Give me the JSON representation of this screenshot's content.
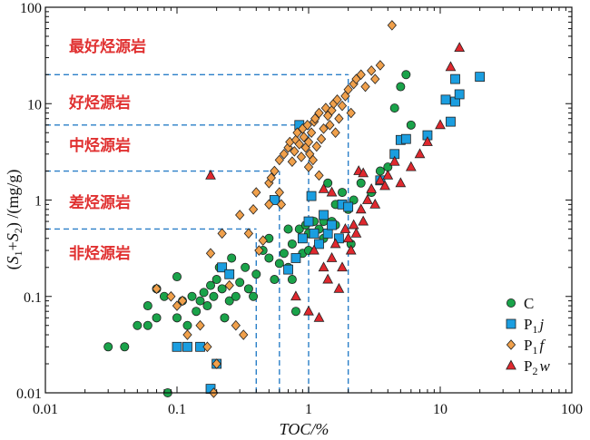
{
  "chart_data": {
    "type": "scatter",
    "x_scale": "log",
    "y_scale": "log",
    "xlim": [
      0.01,
      100
    ],
    "ylim": [
      0.01,
      100
    ],
    "xlabel": "TOC/%",
    "ylabel": "(S1+S2) /(mg/g)",
    "x_ticks": [
      "0.01",
      "0.1",
      "1",
      "10",
      "100"
    ],
    "y_ticks": [
      "0.01",
      "0.1",
      "1",
      "10",
      "100"
    ],
    "grid": false,
    "legend_position": "bottom-right",
    "class_labels": [
      "最好烃源岩",
      "好烃源岩",
      "中烃源岩",
      "差烃源岩",
      "非烃源岩"
    ],
    "thresholds": {
      "y": [
        0.5,
        2,
        6,
        20
      ],
      "x": [
        0.4,
        0.6,
        1.0,
        2.0
      ]
    },
    "colors": {
      "C": "#1aa34a",
      "P1j": "#1b9ee0",
      "P1f": "#f0a04b",
      "P2w": "#e0282e",
      "guide": "#2a7fc8",
      "label": "#e03030"
    },
    "series": [
      {
        "name": "C",
        "marker": "circle",
        "points": [
          [
            0.03,
            0.03
          ],
          [
            0.04,
            0.03
          ],
          [
            0.05,
            0.05
          ],
          [
            0.06,
            0.05
          ],
          [
            0.06,
            0.08
          ],
          [
            0.07,
            0.06
          ],
          [
            0.07,
            0.12
          ],
          [
            0.08,
            0.1
          ],
          [
            0.085,
            0.01
          ],
          [
            0.1,
            0.06
          ],
          [
            0.1,
            0.16
          ],
          [
            0.11,
            0.09
          ],
          [
            0.12,
            0.05
          ],
          [
            0.13,
            0.1
          ],
          [
            0.14,
            0.07
          ],
          [
            0.15,
            0.09
          ],
          [
            0.16,
            0.11
          ],
          [
            0.17,
            0.08
          ],
          [
            0.18,
            0.13
          ],
          [
            0.19,
            0.1
          ],
          [
            0.2,
            0.15
          ],
          [
            0.21,
            0.2
          ],
          [
            0.22,
            0.12
          ],
          [
            0.23,
            0.06
          ],
          [
            0.25,
            0.09
          ],
          [
            0.26,
            0.25
          ],
          [
            0.28,
            0.1
          ],
          [
            0.3,
            0.14
          ],
          [
            0.33,
            0.2
          ],
          [
            0.35,
            0.12
          ],
          [
            0.38,
            0.1
          ],
          [
            0.4,
            0.17
          ],
          [
            0.45,
            0.3
          ],
          [
            0.5,
            0.25
          ],
          [
            0.55,
            0.15
          ],
          [
            0.6,
            0.22
          ],
          [
            0.65,
            0.28
          ],
          [
            0.7,
            0.2
          ],
          [
            0.75,
            0.35
          ],
          [
            0.8,
            0.07
          ],
          [
            0.85,
            0.5
          ],
          [
            0.9,
            0.4
          ],
          [
            0.95,
            0.55
          ],
          [
            1.0,
            0.45
          ],
          [
            1.1,
            0.6
          ],
          [
            1.2,
            0.5
          ],
          [
            1.3,
            0.4
          ],
          [
            1.5,
            0.6
          ],
          [
            1.6,
            0.9
          ],
          [
            1.8,
            1.2
          ],
          [
            2.0,
            0.8
          ],
          [
            2.2,
            1.0
          ],
          [
            2.5,
            1.5
          ],
          [
            3.0,
            1.2
          ],
          [
            3.5,
            2.0
          ],
          [
            4.0,
            2.2
          ],
          [
            4.5,
            9.0
          ],
          [
            5.0,
            15.0
          ],
          [
            5.5,
            20.0
          ],
          [
            6.0,
            6.0
          ],
          [
            0.7,
            0.5
          ],
          [
            0.9,
            0.28
          ],
          [
            1.0,
            0.3
          ],
          [
            1.2,
            0.35
          ],
          [
            1.3,
            0.6
          ],
          [
            1.6,
            0.55
          ],
          [
            0.75,
            0.15
          ],
          [
            0.5,
            0.4
          ],
          [
            1.4,
            1.5
          ],
          [
            2.1,
            0.35
          ]
        ]
      },
      {
        "name": "P1j",
        "marker": "square",
        "points": [
          [
            0.1,
            0.03
          ],
          [
            0.12,
            0.03
          ],
          [
            0.15,
            0.03
          ],
          [
            0.18,
            0.011
          ],
          [
            0.2,
            0.02
          ],
          [
            0.22,
            0.2
          ],
          [
            0.25,
            0.17
          ],
          [
            0.55,
            1.0
          ],
          [
            0.7,
            0.19
          ],
          [
            0.8,
            0.25
          ],
          [
            0.9,
            0.4
          ],
          [
            1.0,
            0.6
          ],
          [
            1.05,
            1.1
          ],
          [
            1.1,
            0.45
          ],
          [
            1.2,
            0.35
          ],
          [
            1.3,
            0.7
          ],
          [
            1.4,
            0.45
          ],
          [
            1.5,
            0.55
          ],
          [
            1.7,
            0.4
          ],
          [
            1.8,
            0.9
          ],
          [
            2.0,
            0.85
          ],
          [
            3.5,
            1.6
          ],
          [
            4.5,
            3.0
          ],
          [
            5.0,
            4.2
          ],
          [
            5.5,
            4.3
          ],
          [
            8.0,
            4.7
          ],
          [
            11.0,
            11.0
          ],
          [
            12.0,
            6.5
          ],
          [
            13.0,
            10.5
          ],
          [
            14.0,
            12.5
          ],
          [
            20.0,
            19.0
          ],
          [
            13.0,
            18.0
          ],
          [
            0.85,
            6.0
          ]
        ]
      },
      {
        "name": "P1f",
        "marker": "diamond",
        "points": [
          [
            0.07,
            0.12
          ],
          [
            0.09,
            0.1
          ],
          [
            0.1,
            0.08
          ],
          [
            0.11,
            0.09
          ],
          [
            0.12,
            0.04
          ],
          [
            0.15,
            0.05
          ],
          [
            0.17,
            0.03
          ],
          [
            0.18,
            0.28
          ],
          [
            0.19,
            0.01
          ],
          [
            0.2,
            0.02
          ],
          [
            0.22,
            0.45
          ],
          [
            0.25,
            0.13
          ],
          [
            0.28,
            0.05
          ],
          [
            0.3,
            0.7
          ],
          [
            0.32,
            0.04
          ],
          [
            0.35,
            0.45
          ],
          [
            0.38,
            0.8
          ],
          [
            0.4,
            1.2
          ],
          [
            0.42,
            0.3
          ],
          [
            0.45,
            0.38
          ],
          [
            0.5,
            1.5
          ],
          [
            0.52,
            1.7
          ],
          [
            0.55,
            2.0
          ],
          [
            0.6,
            2.6
          ],
          [
            0.62,
            0.9
          ],
          [
            0.65,
            3.0
          ],
          [
            0.7,
            3.5
          ],
          [
            0.72,
            4.0
          ],
          [
            0.75,
            2.5
          ],
          [
            0.78,
            3.2
          ],
          [
            0.8,
            4.2
          ],
          [
            0.82,
            5.0
          ],
          [
            0.85,
            3.8
          ],
          [
            0.88,
            2.8
          ],
          [
            0.9,
            5.5
          ],
          [
            0.92,
            4.5
          ],
          [
            0.95,
            3.5
          ],
          [
            0.98,
            6.0
          ],
          [
            1.0,
            4.0
          ],
          [
            1.02,
            3.0
          ],
          [
            1.05,
            5.0
          ],
          [
            1.08,
            2.6
          ],
          [
            1.1,
            6.5
          ],
          [
            1.12,
            7.0
          ],
          [
            1.15,
            3.6
          ],
          [
            1.2,
            8.0
          ],
          [
            1.25,
            4.3
          ],
          [
            1.3,
            5.5
          ],
          [
            1.35,
            9.0
          ],
          [
            1.4,
            7.5
          ],
          [
            1.45,
            6.0
          ],
          [
            1.5,
            8.5
          ],
          [
            1.55,
            10.0
          ],
          [
            1.6,
            5.0
          ],
          [
            1.65,
            11.0
          ],
          [
            1.7,
            7.0
          ],
          [
            1.8,
            9.5
          ],
          [
            1.9,
            12.0
          ],
          [
            2.0,
            14.0
          ],
          [
            2.1,
            8.0
          ],
          [
            2.2,
            16.0
          ],
          [
            2.3,
            18.0
          ],
          [
            2.5,
            20.0
          ],
          [
            2.7,
            15.0
          ],
          [
            3.0,
            22.0
          ],
          [
            3.2,
            18.0
          ],
          [
            3.5,
            25.0
          ],
          [
            4.3,
            65.0
          ],
          [
            0.6,
            1.2
          ],
          [
            0.5,
            0.9
          ],
          [
            1.0,
            2.2
          ],
          [
            1.2,
            1.8
          ]
        ]
      },
      {
        "name": "P2w",
        "marker": "triangle",
        "points": [
          [
            0.18,
            1.8
          ],
          [
            0.8,
            0.1
          ],
          [
            1.0,
            0.07
          ],
          [
            1.1,
            0.3
          ],
          [
            1.2,
            0.06
          ],
          [
            1.3,
            0.2
          ],
          [
            1.4,
            0.15
          ],
          [
            1.5,
            0.25
          ],
          [
            1.6,
            0.35
          ],
          [
            1.7,
            0.12
          ],
          [
            1.8,
            0.2
          ],
          [
            1.9,
            0.5
          ],
          [
            2.0,
            0.4
          ],
          [
            2.1,
            0.3
          ],
          [
            2.2,
            0.55
          ],
          [
            2.3,
            0.45
          ],
          [
            2.5,
            0.8
          ],
          [
            2.6,
            0.6
          ],
          [
            2.8,
            1.0
          ],
          [
            3.0,
            1.3
          ],
          [
            3.2,
            0.9
          ],
          [
            3.5,
            1.6
          ],
          [
            3.8,
            1.4
          ],
          [
            4.0,
            1.8
          ],
          [
            4.5,
            2.5
          ],
          [
            5.0,
            1.5
          ],
          [
            6.0,
            2.2
          ],
          [
            7.0,
            3.0
          ],
          [
            8.0,
            4.0
          ],
          [
            10.0,
            6.0
          ],
          [
            12.0,
            24.0
          ],
          [
            14.0,
            38.0
          ],
          [
            1.5,
            1.2
          ],
          [
            2.4,
            2.0
          ],
          [
            1.3,
            1.3
          ],
          [
            2.6,
            1.9
          ]
        ]
      }
    ]
  }
}
